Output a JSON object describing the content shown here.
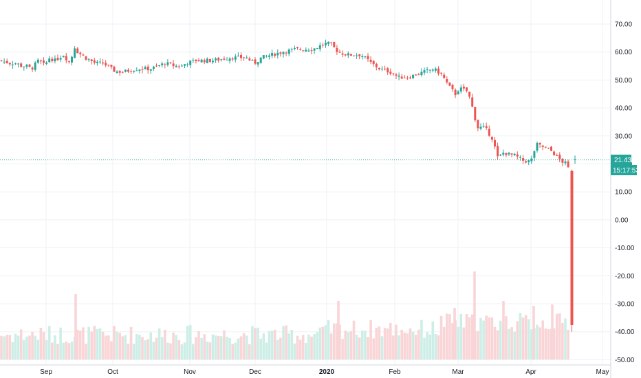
{
  "chart_data": {
    "type": "candlestick",
    "y_range": [
      -50,
      75
    ],
    "y_ticks": [
      "70.00",
      "60.00",
      "50.00",
      "40.00",
      "30.00",
      "20.00",
      "10.00",
      "0.00",
      "-10.00",
      "-20.00",
      "-30.00",
      "-40.00",
      "-50.00"
    ],
    "x_ticks": [
      "Sep",
      "Oct",
      "Nov",
      "Dec",
      "2020",
      "Feb",
      "Mar",
      "Apr",
      "May"
    ],
    "last_price": {
      "value": 21.43,
      "label": "21.43"
    },
    "countdown": "15:17:53",
    "colors": {
      "up": "#26a69a",
      "down": "#ef5350",
      "up_volume": "#cdeee6",
      "down_volume": "#f9d5d7",
      "grid": "#eef1f4",
      "axis": "#d1d4dc",
      "price_line": "#26a69a"
    },
    "series_monthly_closes": [
      {
        "period": "2019-08",
        "close": 55.0
      },
      {
        "period": "2019-09",
        "close": 58.5
      },
      {
        "period": "2019-10",
        "close": 54.0
      },
      {
        "period": "2019-11",
        "close": 56.5
      },
      {
        "period": "2019-12",
        "close": 61.0
      },
      {
        "period": "2020-01",
        "close": 58.0
      },
      {
        "period": "2020-02",
        "close": 51.5
      },
      {
        "period": "2020-03",
        "close": 21.0
      },
      {
        "period": "2020-04",
        "close": -37.6
      }
    ],
    "volume": "relative bars shown along bottom of pane (unlabelled)"
  }
}
